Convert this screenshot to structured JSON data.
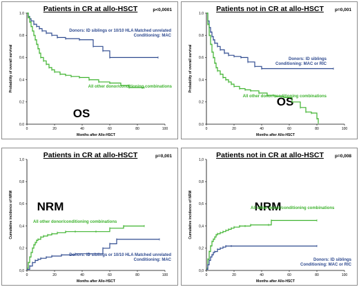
{
  "chart_data": [
    {
      "type": "line",
      "title": "Patients in CR at allo-HSCT",
      "p_value": "p<0,0001",
      "big_label": "OS",
      "xlabel": "Months after Allo-HSCT",
      "ylabel": "Probability of overall survival",
      "xlim": [
        0,
        100
      ],
      "ylim": [
        0,
        1.0
      ],
      "xticks": [
        "0",
        "20",
        "40",
        "60",
        "80",
        "100"
      ],
      "yticks": [
        "0.0",
        "0.2",
        "0.4",
        "0.6",
        "0.8",
        "1.0"
      ],
      "series": [
        {
          "color": "#2e4a8f",
          "labels": [
            "Donors: ID siblings or 10/10 HLA Matched unrelated",
            "Conditioning: MAC"
          ],
          "x": [
            0,
            1,
            2,
            3,
            5,
            7,
            9,
            11,
            14,
            18,
            22,
            28,
            38,
            48,
            55,
            60,
            95
          ],
          "y": [
            1.0,
            0.97,
            0.95,
            0.93,
            0.9,
            0.88,
            0.86,
            0.84,
            0.82,
            0.8,
            0.78,
            0.77,
            0.76,
            0.7,
            0.66,
            0.6,
            0.6
          ]
        },
        {
          "color": "#3db22d",
          "labels": [
            "All other donor/conditioning combinations"
          ],
          "x": [
            0,
            1,
            2,
            3,
            4,
            5,
            6,
            7,
            8,
            9,
            10,
            12,
            14,
            16,
            18,
            20,
            24,
            28,
            32,
            38,
            45,
            52,
            60,
            68,
            74,
            85
          ],
          "y": [
            1.0,
            0.96,
            0.92,
            0.88,
            0.84,
            0.8,
            0.76,
            0.72,
            0.68,
            0.64,
            0.6,
            0.57,
            0.54,
            0.51,
            0.49,
            0.47,
            0.45,
            0.44,
            0.43,
            0.42,
            0.4,
            0.38,
            0.37,
            0.35,
            0.33,
            0.33
          ]
        }
      ]
    },
    {
      "type": "line",
      "title": "Patients not in CR at allo-HSCT",
      "p_value": "p=0,001",
      "big_label": "OS",
      "xlabel": "Months after Allo-HSCT",
      "ylabel": "Probability of overall survival",
      "xlim": [
        0,
        100
      ],
      "ylim": [
        0,
        1.0
      ],
      "xticks": [
        "0",
        "20",
        "40",
        "60",
        "80",
        "100"
      ],
      "yticks": [
        "0.0",
        "0.2",
        "0.4",
        "0.6",
        "0.8",
        "1.0"
      ],
      "series": [
        {
          "color": "#2e4a8f",
          "labels": [
            "Donors: ID siblings",
            "Conditioning: MAC or RIC"
          ],
          "x": [
            0,
            1,
            2,
            3,
            4,
            5,
            6,
            8,
            10,
            13,
            16,
            20,
            25,
            30,
            35,
            40,
            92
          ],
          "y": [
            1.0,
            0.93,
            0.87,
            0.83,
            0.79,
            0.76,
            0.73,
            0.7,
            0.67,
            0.64,
            0.62,
            0.61,
            0.6,
            0.56,
            0.52,
            0.5,
            0.5
          ]
        },
        {
          "color": "#3db22d",
          "labels": [
            "All other donor/conditioning combinations"
          ],
          "x": [
            0,
            1,
            2,
            3,
            4,
            5,
            6,
            7,
            8,
            10,
            12,
            14,
            16,
            18,
            20,
            24,
            28,
            32,
            38,
            44,
            50,
            56,
            62,
            68,
            72,
            76,
            80,
            81
          ],
          "y": [
            1.0,
            0.9,
            0.8,
            0.72,
            0.65,
            0.6,
            0.55,
            0.51,
            0.48,
            0.45,
            0.42,
            0.4,
            0.38,
            0.36,
            0.34,
            0.32,
            0.31,
            0.3,
            0.28,
            0.26,
            0.25,
            0.24,
            0.2,
            0.15,
            0.11,
            0.1,
            0.05,
            0.01
          ]
        }
      ]
    },
    {
      "type": "line",
      "title": "Patients in CR at allo-HSCT",
      "p_value": "p=0,001",
      "big_label": "NRM",
      "xlabel": "Months after Allo-HSCT",
      "ylabel": "Cumulative incidence of NRM",
      "xlim": [
        0,
        100
      ],
      "ylim": [
        0,
        1.0
      ],
      "xticks": [
        "0",
        "20",
        "40",
        "60",
        "80",
        "100"
      ],
      "yticks": [
        "0,0",
        "0,2",
        "0,4",
        "0,6",
        "0,8",
        "1,0"
      ],
      "series": [
        {
          "color": "#3db22d",
          "labels": [
            "All other donor/conditioning combinations"
          ],
          "x": [
            0,
            1,
            2,
            3,
            4,
            5,
            6,
            7,
            8,
            10,
            12,
            15,
            18,
            22,
            28,
            35,
            50,
            60,
            70,
            85
          ],
          "y": [
            0.02,
            0.07,
            0.12,
            0.16,
            0.2,
            0.23,
            0.25,
            0.27,
            0.28,
            0.3,
            0.31,
            0.32,
            0.33,
            0.34,
            0.35,
            0.35,
            0.35,
            0.38,
            0.4,
            0.4
          ]
        },
        {
          "color": "#2e4a8f",
          "labels": [
            "Donors: ID siblings or 10/10 HLA Matched unrelated",
            "Conditioning: MAC"
          ],
          "x": [
            0,
            2,
            4,
            6,
            8,
            10,
            14,
            18,
            25,
            35,
            45,
            55,
            60,
            65,
            96
          ],
          "y": [
            0.01,
            0.04,
            0.07,
            0.09,
            0.1,
            0.11,
            0.12,
            0.13,
            0.14,
            0.15,
            0.15,
            0.2,
            0.24,
            0.28,
            0.28
          ]
        }
      ]
    },
    {
      "type": "line",
      "title": "Patients not in CR at allo-HSCT",
      "p_value": "p=0,008",
      "big_label": "NRM",
      "xlabel": "Months after Allo-HSCT",
      "ylabel": "Cumulative incidence of NRM",
      "xlim": [
        0,
        100
      ],
      "ylim": [
        0,
        1.0
      ],
      "xticks": [
        "0",
        "20",
        "40",
        "60",
        "80",
        "100"
      ],
      "yticks": [
        "0,0",
        "0,2",
        "0,4",
        "0,6",
        "0,8",
        "1,0"
      ],
      "series": [
        {
          "color": "#3db22d",
          "labels": [
            "All other donor/conditioning combinations"
          ],
          "x": [
            0,
            1,
            2,
            3,
            4,
            5,
            6,
            7,
            8,
            10,
            12,
            14,
            16,
            18,
            20,
            24,
            28,
            32,
            45,
            47,
            80
          ],
          "y": [
            0.02,
            0.1,
            0.17,
            0.22,
            0.26,
            0.28,
            0.3,
            0.32,
            0.33,
            0.34,
            0.35,
            0.36,
            0.37,
            0.38,
            0.39,
            0.4,
            0.4,
            0.41,
            0.41,
            0.45,
            0.45
          ]
        },
        {
          "color": "#2e4a8f",
          "labels": [
            "Donors: ID siblings",
            "Conditioning: MAC or RIC"
          ],
          "x": [
            0,
            1,
            2,
            3,
            4,
            5,
            6,
            8,
            10,
            12,
            14,
            18,
            80
          ],
          "y": [
            0.01,
            0.05,
            0.09,
            0.12,
            0.14,
            0.16,
            0.17,
            0.19,
            0.2,
            0.21,
            0.22,
            0.22,
            0.22
          ]
        }
      ]
    }
  ]
}
